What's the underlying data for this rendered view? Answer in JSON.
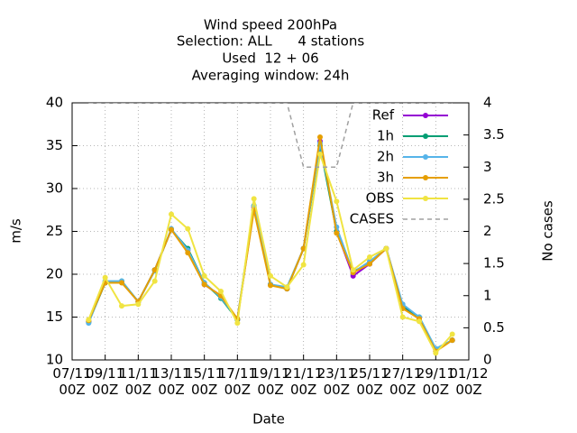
{
  "chart_data": {
    "type": "line",
    "title": [
      "Wind speed 200hPa",
      "Selection: ALL      4 stations",
      "Used  12 + 06",
      "Averaging window: 24h"
    ],
    "xlabel": "Date",
    "ylabel": "m/s",
    "y2label": "No cases",
    "x": [
      1,
      2,
      3,
      4,
      5,
      6,
      7,
      8,
      9,
      10,
      11,
      12,
      13,
      14,
      15,
      16,
      17,
      18,
      19,
      20,
      21,
      22,
      23
    ],
    "xlim": [
      0,
      24
    ],
    "xticks": [
      {
        "value": 0,
        "label": "07/11\n00Z"
      },
      {
        "value": 2,
        "label": "09/11\n00Z"
      },
      {
        "value": 4,
        "label": "11/11\n00Z"
      },
      {
        "value": 6,
        "label": "13/11\n00Z"
      },
      {
        "value": 8,
        "label": "15/11\n00Z"
      },
      {
        "value": 10,
        "label": "17/11\n00Z"
      },
      {
        "value": 12,
        "label": "19/11\n00Z"
      },
      {
        "value": 14,
        "label": "21/11\n00Z"
      },
      {
        "value": 16,
        "label": "23/11\n00Z"
      },
      {
        "value": 18,
        "label": "25/11\n00Z"
      },
      {
        "value": 20,
        "label": "27/11\n00Z"
      },
      {
        "value": 22,
        "label": "29/11\n00Z"
      },
      {
        "value": 24,
        "label": "01/12\n00Z"
      }
    ],
    "ylim": [
      10,
      40
    ],
    "yticks": [
      10,
      15,
      20,
      25,
      30,
      35,
      40
    ],
    "y2lim": [
      0,
      4
    ],
    "y2ticks": [
      0,
      0.5,
      1,
      1.5,
      2,
      2.5,
      3,
      3.5,
      4
    ],
    "grid": true,
    "legend": "top-right",
    "series": [
      {
        "name": "Ref",
        "color": "#9400d3",
        "values": [
          14.5,
          19.0,
          19.1,
          16.8,
          20.5,
          25.2,
          22.8,
          18.8,
          17.5,
          14.7,
          27.8,
          18.8,
          18.3,
          23.0,
          35.5,
          25.0,
          19.8,
          21.2,
          23.0,
          16.3,
          14.8,
          11.2,
          12.3
        ]
      },
      {
        "name": "1h",
        "color": "#009e73",
        "values": [
          14.4,
          19.0,
          19.2,
          16.8,
          20.5,
          25.2,
          23.0,
          19.0,
          17.2,
          14.7,
          28.0,
          18.8,
          18.3,
          23.0,
          35.0,
          25.0,
          20.3,
          21.3,
          23.0,
          16.3,
          15.0,
          11.3,
          12.3
        ]
      },
      {
        "name": "2h",
        "color": "#56b4e9",
        "values": [
          14.3,
          19.2,
          19.2,
          16.8,
          20.4,
          25.3,
          22.8,
          19.0,
          17.3,
          14.8,
          28.0,
          18.8,
          18.5,
          23.0,
          35.3,
          25.5,
          20.2,
          21.5,
          23.0,
          16.5,
          15.0,
          11.3,
          12.3
        ]
      },
      {
        "name": "3h",
        "color": "#e69f00",
        "values": [
          14.6,
          19.0,
          19.0,
          16.8,
          20.5,
          25.2,
          22.5,
          18.8,
          17.5,
          14.8,
          27.5,
          18.7,
          18.3,
          23.0,
          36.0,
          24.8,
          20.2,
          21.2,
          23.0,
          16.0,
          14.8,
          11.0,
          12.3
        ]
      },
      {
        "name": "OBS",
        "color": "#f0e442",
        "values": [
          14.7,
          19.6,
          16.3,
          16.5,
          19.2,
          27.0,
          25.3,
          19.8,
          18.0,
          14.3,
          28.8,
          19.8,
          18.5,
          21.1,
          34.0,
          28.5,
          20.5,
          22.0,
          23.0,
          15.0,
          14.5,
          10.8,
          13.0
        ]
      },
      {
        "name": "CASES",
        "color": "#a0a0a0",
        "dashed": true,
        "axis": "y2",
        "values": [
          4,
          4,
          4,
          4,
          4,
          4,
          4,
          4,
          4,
          4,
          4,
          4,
          4,
          3,
          3,
          3,
          4,
          4,
          4,
          4,
          4,
          4,
          4
        ]
      }
    ]
  }
}
